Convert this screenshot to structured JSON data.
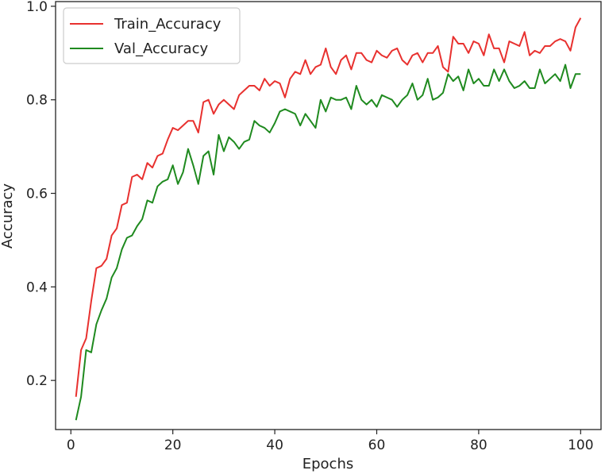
{
  "chart_data": {
    "type": "line",
    "xlabel": "Epochs",
    "ylabel": "Accuracy",
    "xlim": [
      -3.0,
      104.0
    ],
    "ylim": [
      0.095,
      1.01
    ],
    "xticks": [
      0,
      20,
      40,
      60,
      80,
      100
    ],
    "yticks": [
      0.2,
      0.4,
      0.6,
      0.8,
      1.0
    ],
    "grid": false,
    "legend_position": "top-left",
    "x": [
      1,
      2,
      3,
      4,
      5,
      6,
      7,
      8,
      9,
      10,
      11,
      12,
      13,
      14,
      15,
      16,
      17,
      18,
      19,
      20,
      21,
      22,
      23,
      24,
      25,
      26,
      27,
      28,
      29,
      30,
      31,
      32,
      33,
      34,
      35,
      36,
      37,
      38,
      39,
      40,
      41,
      42,
      43,
      44,
      45,
      46,
      47,
      48,
      49,
      50,
      51,
      52,
      53,
      54,
      55,
      56,
      57,
      58,
      59,
      60,
      61,
      62,
      63,
      64,
      65,
      66,
      67,
      68,
      69,
      70,
      71,
      72,
      73,
      74,
      75,
      76,
      77,
      78,
      79,
      80,
      81,
      82,
      83,
      84,
      85,
      86,
      87,
      88,
      89,
      90,
      91,
      92,
      93,
      94,
      95,
      96,
      97,
      98,
      99,
      100
    ],
    "series": [
      {
        "name": "Train_Accuracy",
        "color": "#e8312f",
        "values": [
          0.165,
          0.265,
          0.29,
          0.37,
          0.44,
          0.445,
          0.46,
          0.51,
          0.525,
          0.575,
          0.58,
          0.635,
          0.64,
          0.63,
          0.665,
          0.655,
          0.68,
          0.685,
          0.715,
          0.74,
          0.735,
          0.745,
          0.755,
          0.755,
          0.73,
          0.795,
          0.8,
          0.77,
          0.79,
          0.8,
          0.79,
          0.78,
          0.81,
          0.82,
          0.83,
          0.83,
          0.82,
          0.845,
          0.83,
          0.84,
          0.835,
          0.805,
          0.845,
          0.86,
          0.855,
          0.885,
          0.855,
          0.87,
          0.875,
          0.91,
          0.87,
          0.855,
          0.885,
          0.895,
          0.865,
          0.9,
          0.9,
          0.885,
          0.88,
          0.905,
          0.895,
          0.89,
          0.905,
          0.91,
          0.885,
          0.875,
          0.895,
          0.9,
          0.88,
          0.9,
          0.9,
          0.915,
          0.87,
          0.86,
          0.935,
          0.92,
          0.92,
          0.9,
          0.925,
          0.92,
          0.895,
          0.94,
          0.91,
          0.91,
          0.88,
          0.925,
          0.92,
          0.915,
          0.945,
          0.895,
          0.905,
          0.9,
          0.915,
          0.915,
          0.925,
          0.93,
          0.925,
          0.905,
          0.955,
          0.975
        ]
      },
      {
        "name": "Val_Accuracy",
        "color": "#1f8a1f",
        "values": [
          0.115,
          0.165,
          0.265,
          0.26,
          0.32,
          0.35,
          0.375,
          0.42,
          0.44,
          0.48,
          0.505,
          0.51,
          0.53,
          0.545,
          0.585,
          0.58,
          0.615,
          0.625,
          0.63,
          0.66,
          0.62,
          0.645,
          0.695,
          0.66,
          0.62,
          0.68,
          0.69,
          0.64,
          0.725,
          0.69,
          0.72,
          0.71,
          0.695,
          0.71,
          0.715,
          0.755,
          0.745,
          0.74,
          0.73,
          0.75,
          0.775,
          0.78,
          0.775,
          0.77,
          0.745,
          0.77,
          0.755,
          0.74,
          0.8,
          0.775,
          0.805,
          0.8,
          0.8,
          0.805,
          0.78,
          0.83,
          0.8,
          0.79,
          0.8,
          0.785,
          0.81,
          0.805,
          0.8,
          0.785,
          0.8,
          0.81,
          0.835,
          0.8,
          0.81,
          0.845,
          0.8,
          0.805,
          0.815,
          0.855,
          0.84,
          0.85,
          0.82,
          0.865,
          0.835,
          0.845,
          0.83,
          0.83,
          0.865,
          0.84,
          0.865,
          0.84,
          0.825,
          0.83,
          0.84,
          0.825,
          0.825,
          0.865,
          0.835,
          0.845,
          0.855,
          0.84,
          0.875,
          0.825,
          0.855,
          0.855
        ]
      }
    ]
  }
}
